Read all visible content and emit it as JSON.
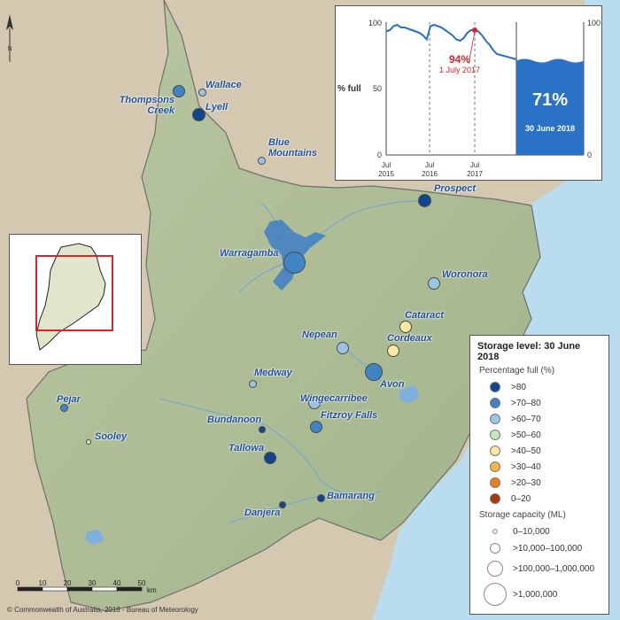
{
  "chart": {
    "y_label": "% full",
    "left_ticks": [
      "100",
      "50",
      "0"
    ],
    "right_ticks": [
      "100",
      "0"
    ],
    "x_ticks": [
      {
        "month": "Jul",
        "year": "2015"
      },
      {
        "month": "Jul",
        "year": "2016"
      },
      {
        "month": "Jul",
        "year": "2017"
      }
    ],
    "highlight_value": "94%",
    "highlight_date": "1 July 2017",
    "current_value": "71%",
    "current_date": "30 June 2018",
    "current_level": 71,
    "line_color": "#2a6fc9",
    "highlight_color": "#e0202a",
    "fill_color": "#2a72c6"
  },
  "chart_data": {
    "type": "line",
    "x": [
      "2015-07",
      "2015-08",
      "2015-09",
      "2015-10",
      "2015-11",
      "2015-12",
      "2016-01",
      "2016-02",
      "2016-03",
      "2016-04",
      "2016-05",
      "2016-06",
      "2016-07",
      "2016-08",
      "2016-09",
      "2016-10",
      "2016-11",
      "2016-12",
      "2017-01",
      "2017-02",
      "2017-03",
      "2017-04",
      "2017-05",
      "2017-06",
      "2017-07",
      "2017-08",
      "2017-09",
      "2017-10",
      "2017-11",
      "2017-12",
      "2018-01"
    ],
    "series": [
      {
        "values": [
          93,
          94,
          97,
          98,
          96,
          96,
          95,
          94,
          93,
          92,
          90,
          87,
          97,
          98,
          97,
          96,
          94,
          92,
          90,
          87,
          86,
          88,
          92,
          94,
          94,
          93,
          90,
          86,
          83,
          79,
          76
        ]
      }
    ],
    "ylim": [
      0,
      100
    ]
  },
  "inset": {
    "frame_color": "#e0202a"
  },
  "legend": {
    "title": "Storage level: 30 June 2018",
    "pct_title": "Percentage full (%)",
    "pct_items": [
      {
        "label": ">80",
        "color": "#13458f"
      },
      {
        "label": ">70–80",
        "color": "#3f84c5"
      },
      {
        "label": ">60–70",
        "color": "#9cc4e4"
      },
      {
        "label": ">50–60",
        "color": "#c7e7be"
      },
      {
        "label": ">40–50",
        "color": "#fbe9a2"
      },
      {
        "label": ">30–40",
        "color": "#f8b546"
      },
      {
        "label": ">20–30",
        "color": "#ef7c1a"
      },
      {
        "label": "0–20",
        "color": "#a8360f"
      }
    ],
    "cap_title": "Storage capacity (ML)",
    "cap_items": [
      "0–10,000",
      ">10,000–100,000",
      ">100,000–1,000,000",
      ">1,000,000"
    ]
  },
  "storages": [
    {
      "name": "Wallace",
      "color": "#9cc4e4"
    },
    {
      "name": "Thompsons Creek",
      "color": "#3f84c5"
    },
    {
      "name": "Lyell",
      "color": "#13458f"
    },
    {
      "name": "Blue Mountains",
      "color": "#9cc4e4"
    },
    {
      "name": "Prospect",
      "color": "#13458f"
    },
    {
      "name": "Warragamba",
      "color": "#3f84c5"
    },
    {
      "name": "Woronora",
      "color": "#9cc4e4"
    },
    {
      "name": "Cataract",
      "color": "#fbe9a2"
    },
    {
      "name": "Nepean",
      "color": "#9cc4e4"
    },
    {
      "name": "Cordeaux",
      "color": "#fbe9a2"
    },
    {
      "name": "Avon",
      "color": "#3f84c5"
    },
    {
      "name": "Medway",
      "color": "#9cc4e4"
    },
    {
      "name": "Wingecarribee",
      "color": "#9cc4e4"
    },
    {
      "name": "Pejar",
      "color": "#3f84c5"
    },
    {
      "name": "Fitzroy Falls",
      "color": "#3f84c5"
    },
    {
      "name": "Bundanoon",
      "color": "#13458f"
    },
    {
      "name": "Sooley",
      "color": "#c7e7be"
    },
    {
      "name": "Tallowa",
      "color": "#13458f"
    },
    {
      "name": "Bamarang",
      "color": "#13458f"
    },
    {
      "name": "Danjera",
      "color": "#13458f"
    }
  ],
  "scale": {
    "ticks": [
      "0",
      "10",
      "20",
      "30",
      "40",
      "50"
    ],
    "unit": "km"
  },
  "north": "N",
  "credit": "© Commonwealth of Australia, 2018 - Bureau of Meteorology"
}
